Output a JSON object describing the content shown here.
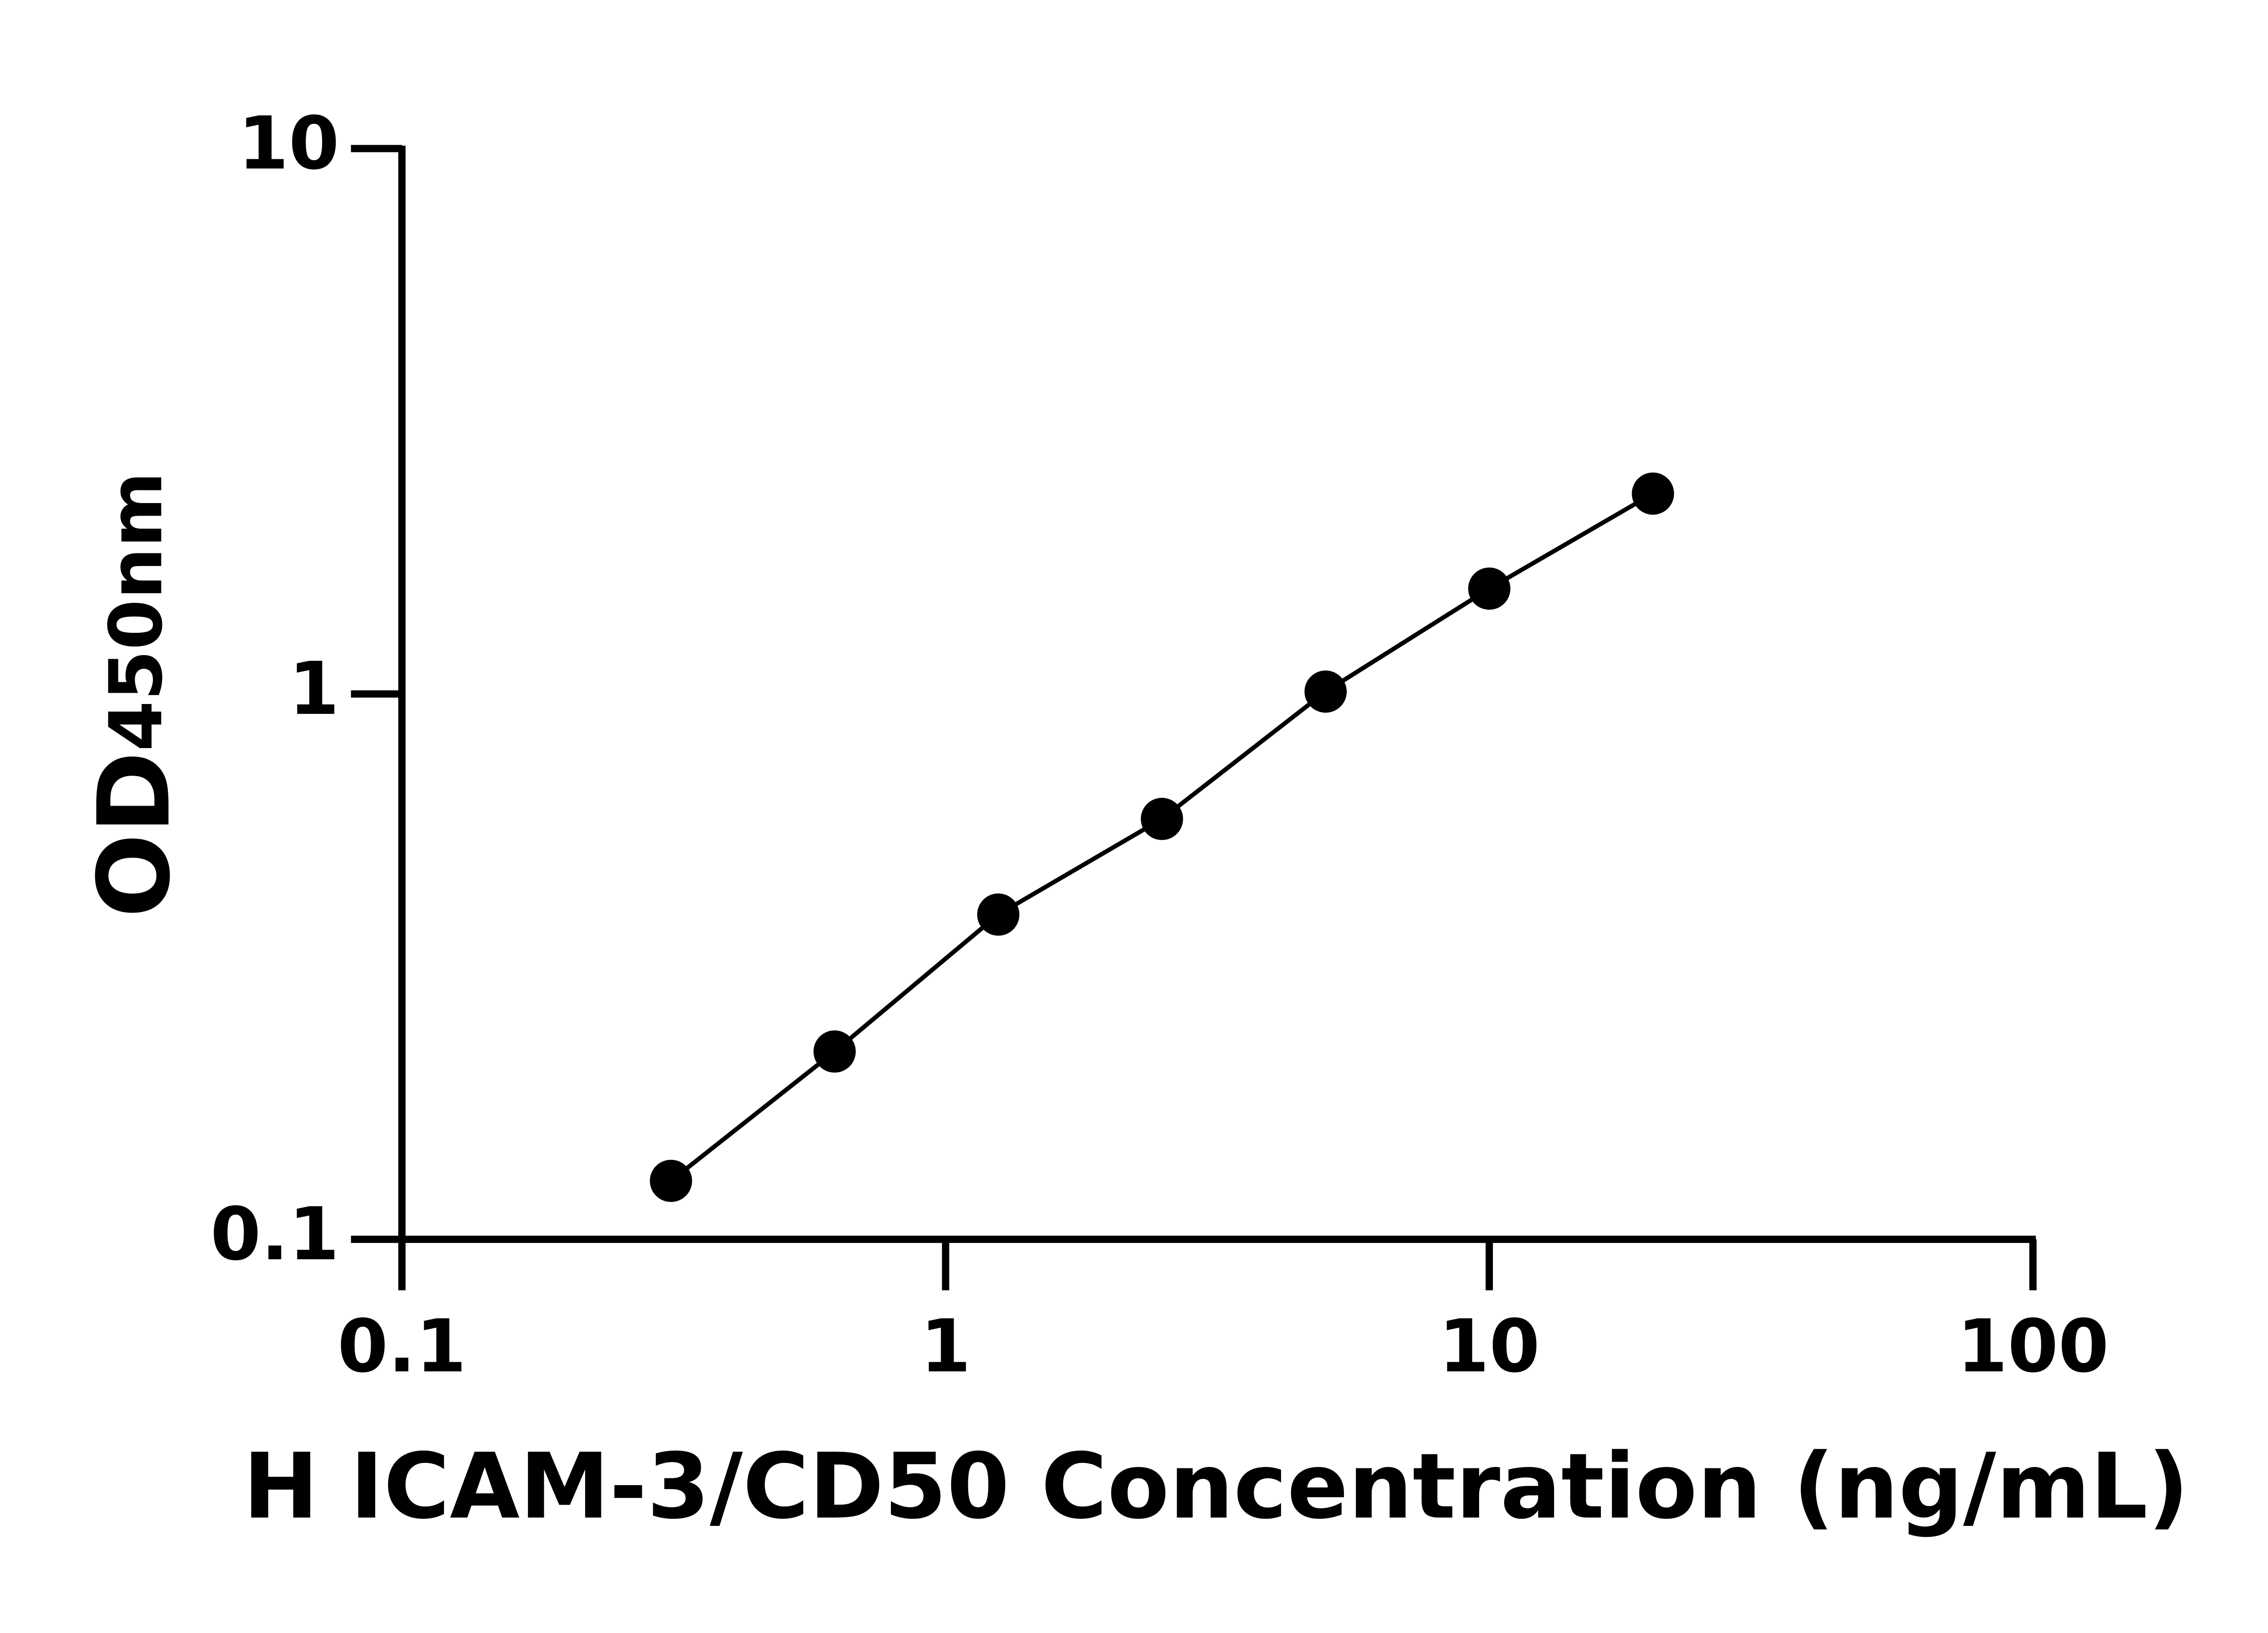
{
  "chart_data": {
    "type": "scatter",
    "x_label": "H ICAM-3/CD50 Concentration (ng/mL)",
    "y_label": "OD",
    "y_label_sub": "450nm",
    "x": [
      0.3125,
      0.625,
      1.25,
      2.5,
      5,
      10,
      20
    ],
    "series": [
      {
        "color": "#000000",
        "values": [
          0.128,
          0.221,
          0.394,
          0.59,
          1.01,
          1.56,
          2.33
        ]
      }
    ],
    "xlim": [
      0.1,
      100
    ],
    "xticks": [
      0.1,
      1,
      10,
      100
    ],
    "ylim": [
      0.1,
      10
    ],
    "yticks": [
      0.1,
      1,
      10
    ],
    "xscale": "log",
    "yscale": "log",
    "line": true,
    "grid": false
  }
}
